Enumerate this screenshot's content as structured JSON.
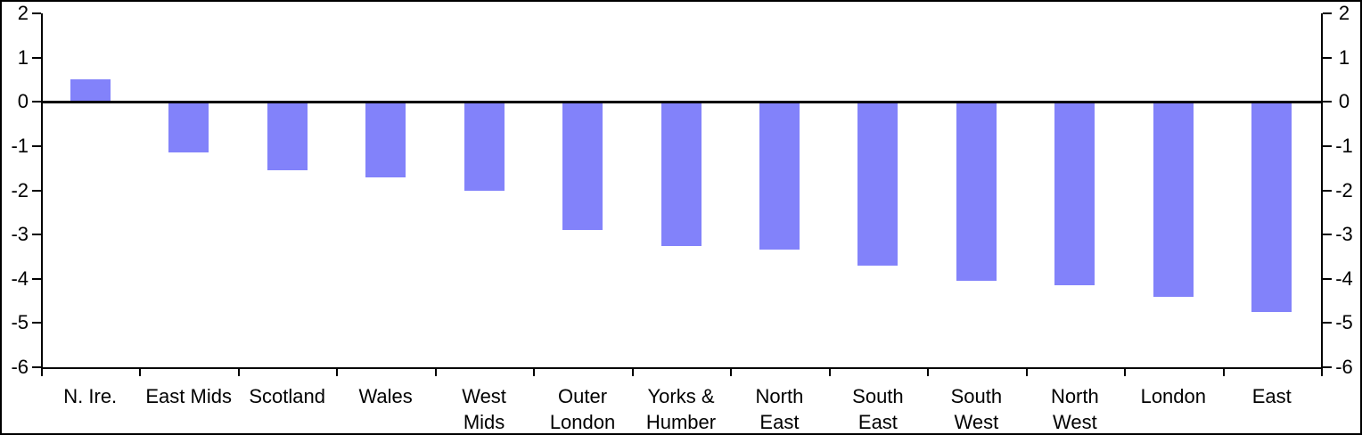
{
  "chart_data": {
    "type": "bar",
    "title": "",
    "xlabel": "",
    "ylabel": "",
    "categories": [
      "N. Ire.",
      "East Mids",
      "Scotland",
      "Wales",
      "West Mids",
      "Outer London",
      "Yorks & Humber",
      "North East",
      "South East",
      "South West",
      "North West",
      "London",
      "East"
    ],
    "category_lines": [
      [
        "N. Ire."
      ],
      [
        "East Mids"
      ],
      [
        "Scotland"
      ],
      [
        "Wales"
      ],
      [
        "West",
        "Mids"
      ],
      [
        "Outer",
        "London"
      ],
      [
        "Yorks &",
        "Humber"
      ],
      [
        "North",
        "East"
      ],
      [
        "South",
        "East"
      ],
      [
        "South",
        "West"
      ],
      [
        "North",
        "West"
      ],
      [
        "London"
      ],
      [
        "East"
      ]
    ],
    "values": [
      0.5,
      -1.15,
      -1.55,
      -1.7,
      -2.0,
      -2.9,
      -3.25,
      -3.35,
      -3.7,
      -4.05,
      -4.15,
      -4.4,
      -4.75
    ],
    "ylim": [
      -6,
      2
    ],
    "yticks": [
      2,
      1,
      0,
      -1,
      -2,
      -3,
      -4,
      -5,
      -6
    ],
    "yticks_left": [
      "2",
      "1",
      "0",
      "-1",
      "-2",
      "-3",
      "-4",
      "-5",
      "-6"
    ],
    "yticks_right": [
      "2",
      "1",
      "0",
      "-1",
      "-2",
      "-3",
      "-4",
      "-5",
      "-6"
    ],
    "grid": false,
    "legend": "none",
    "bar_color": "#8282FA",
    "axis_color": "#000000",
    "background_color": "#FFFFFF",
    "zero_line": true
  }
}
